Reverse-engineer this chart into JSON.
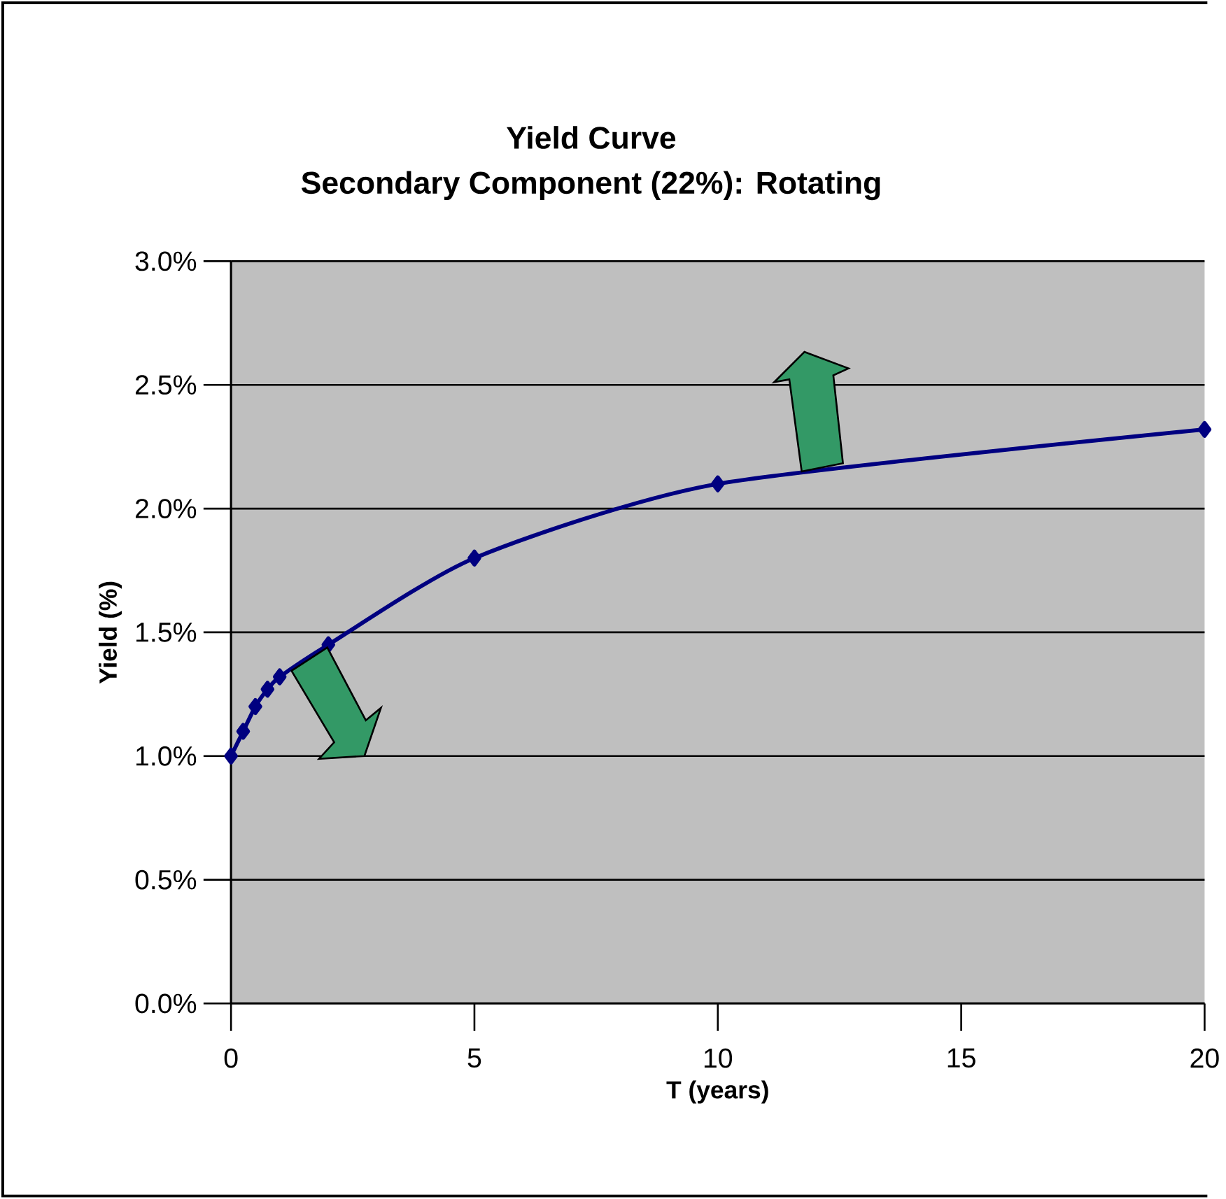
{
  "chart_data": {
    "type": "line",
    "title": "Yield Curve",
    "subtitle": "Secondary Component (22%): Rotating",
    "xlabel": "T (years)",
    "ylabel": "Yield (%)",
    "x": [
      0,
      0.25,
      0.5,
      0.75,
      1,
      2,
      5,
      10,
      20
    ],
    "series": [
      {
        "color": "#000080",
        "values": [
          1.0,
          1.1,
          1.2,
          1.27,
          1.32,
          1.45,
          1.8,
          2.1,
          2.32
        ]
      }
    ],
    "xlim": [
      0,
      20
    ],
    "xticks": [
      0,
      5,
      10,
      15,
      20
    ],
    "ylim": [
      0,
      3
    ],
    "yticks": [
      {
        "value": 0,
        "label": "0.0%"
      },
      {
        "value": 0.5,
        "label": "0.5%"
      },
      {
        "value": 1,
        "label": "1.0%"
      },
      {
        "value": 1.5,
        "label": "1.5%"
      },
      {
        "value": 2,
        "label": "2.0%"
      },
      {
        "value": 2.5,
        "label": "2.5%"
      },
      {
        "value": 3,
        "label": "3.0%"
      }
    ],
    "grid": "y",
    "marker": "diamond",
    "line_style": "solid"
  }
}
